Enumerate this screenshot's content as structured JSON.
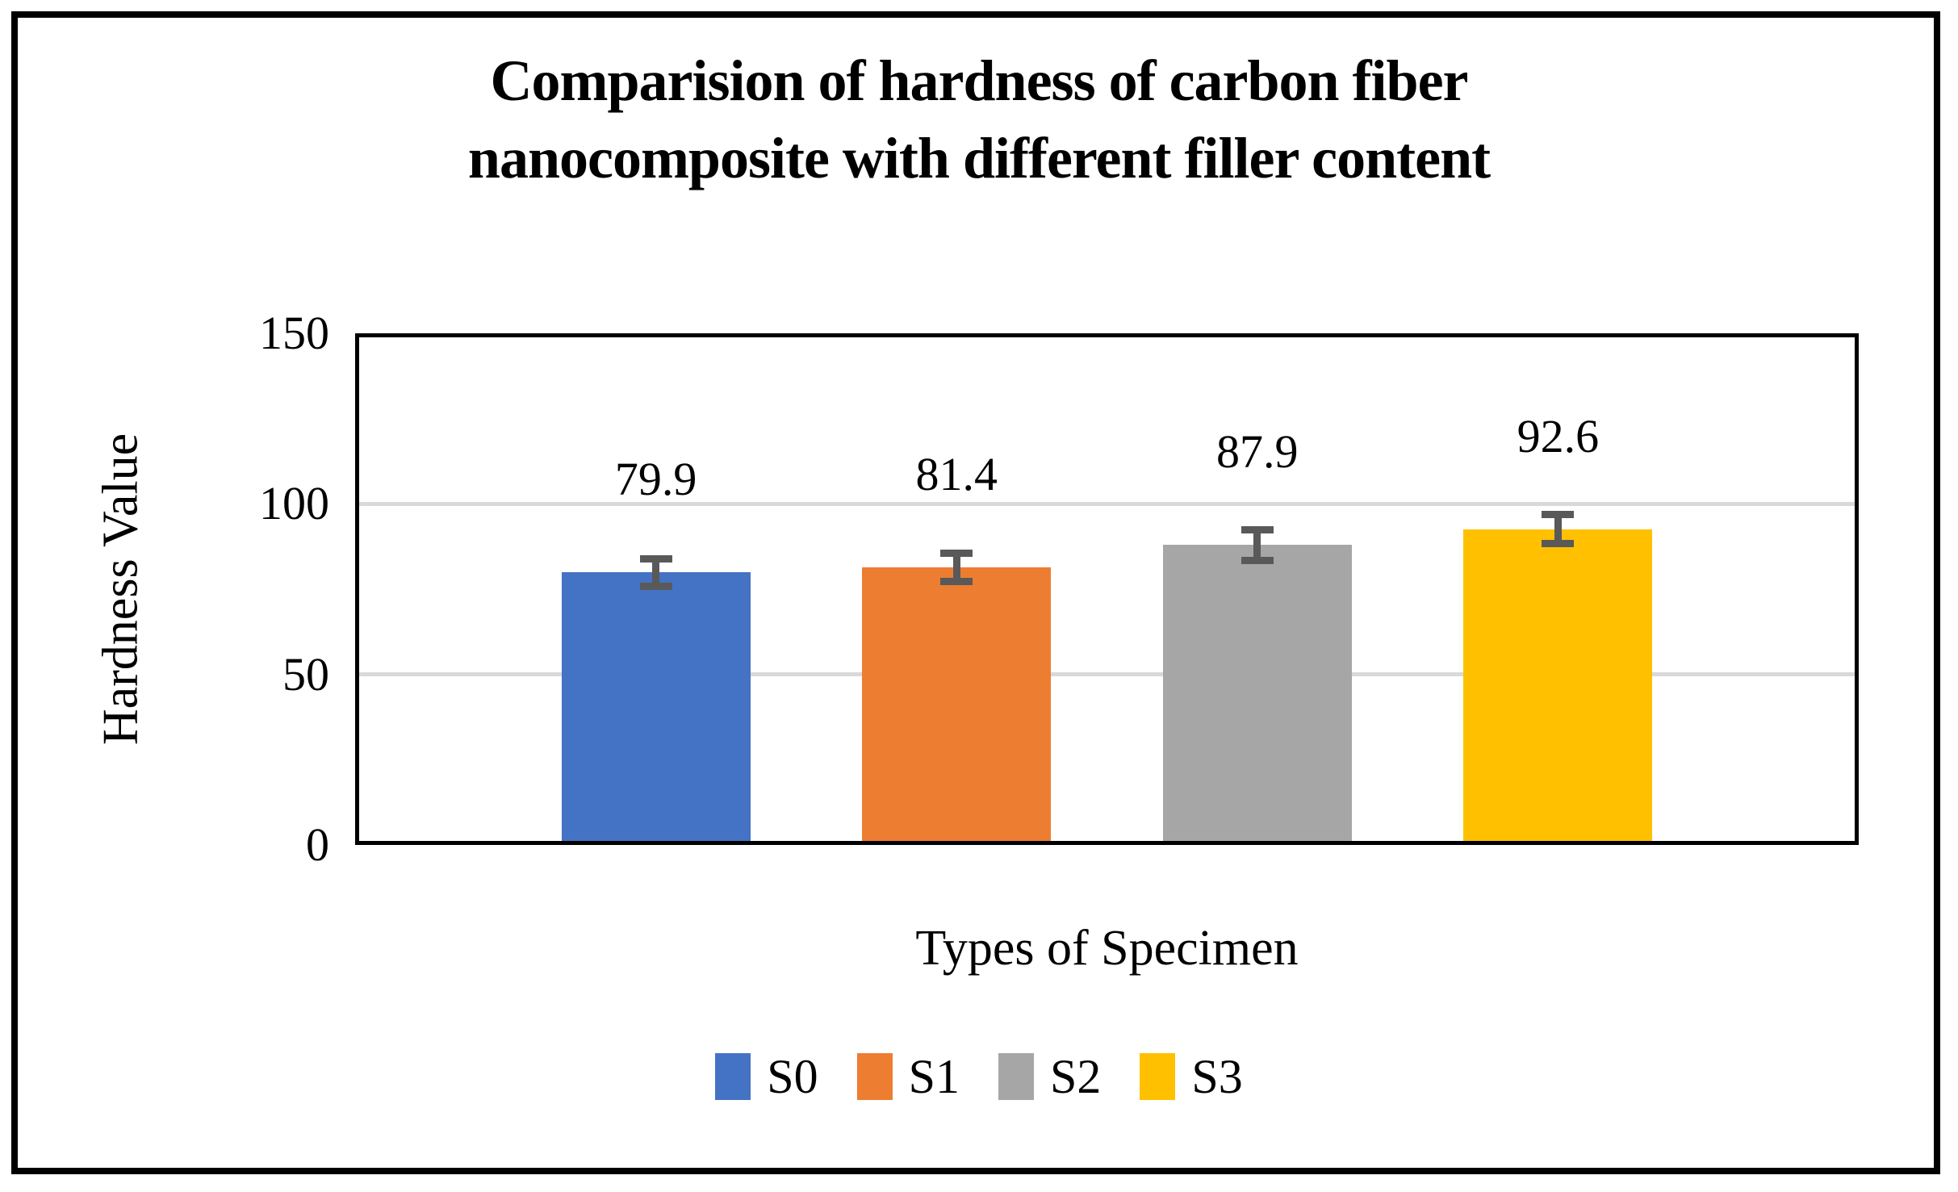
{
  "chart_data": {
    "type": "bar",
    "title": "Comparision of hardness of carbon fiber nanocomposite with different filler content",
    "title_lines": [
      "Comparision of hardness of carbon fiber",
      "nanocomposite with different filler content"
    ],
    "categories": [
      "S0",
      "S1",
      "S2",
      "S3"
    ],
    "values": [
      79.9,
      81.4,
      87.9,
      92.6
    ],
    "data_labels": [
      "79.9",
      "81.4",
      "87.9",
      "92.6"
    ],
    "error_bars": [
      4.0,
      4.1,
      4.4,
      4.3
    ],
    "colors": [
      "#4472C4",
      "#ED7D31",
      "#A6A6A6",
      "#FFC000"
    ],
    "error_bar_color": "#595959",
    "gridline_color": "#D9D9D9",
    "axis_color": "#000000",
    "xlabel": "Types of Specimen",
    "ylabel": "Hardness Value",
    "ylim": [
      0,
      150
    ],
    "yticks": [
      0,
      50,
      100,
      150
    ],
    "grid": true,
    "legend": {
      "position": "bottom",
      "entries": [
        "S0",
        "S1",
        "S2",
        "S3"
      ]
    }
  }
}
